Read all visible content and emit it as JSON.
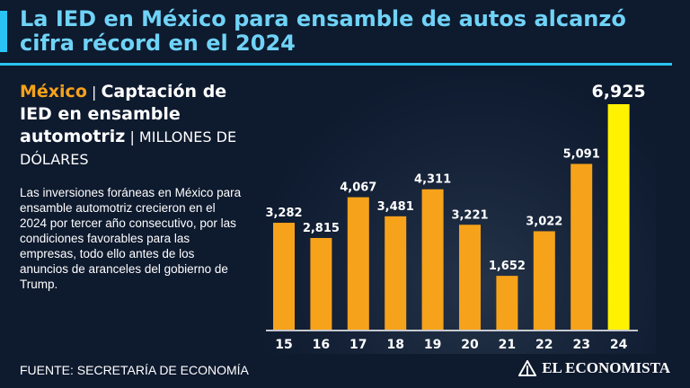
{
  "header": {
    "title": "La IED en México para ensamble de autos alcanzó cifra récord en el 2024"
  },
  "subtitle": {
    "country": "México",
    "separator": " | ",
    "main": "Captación de IED en ensamble automotriz",
    "separator2": " | ",
    "unit": "MILLONES DE DÓLARES"
  },
  "description": "Las inversiones foráneas en México para ensamble automotriz crecieron en el 2024 por tercer año consecutivo, por las condiciones favorables para las empresas, todo ello antes de los anuncios de aranceles del gobierno de Trump.",
  "footer": {
    "source": "FUENTE: SECRETARÍA DE ECONOMÍA",
    "brand": "EL ECONOMISTA"
  },
  "colors": {
    "bar": "#f7a21b",
    "highlight": "#fff200",
    "accent": "#29c4f4",
    "background": "#0e1a2e"
  },
  "chart_data": {
    "type": "bar",
    "title": "Captación de IED en ensamble automotriz",
    "ylabel": "Millones de dólares",
    "xlabel": "",
    "categories": [
      "15",
      "16",
      "17",
      "18",
      "19",
      "20",
      "21",
      "22",
      "23",
      "24"
    ],
    "values": [
      3282,
      2815,
      4067,
      3481,
      4311,
      3221,
      1652,
      3022,
      5091,
      6925
    ],
    "labels": [
      "3,282",
      "2,815",
      "4,067",
      "3,481",
      "4,311",
      "3,221",
      "1,652",
      "3,022",
      "5,091",
      "6,925"
    ],
    "highlight_index": 9,
    "ylim": [
      0,
      6925
    ]
  }
}
